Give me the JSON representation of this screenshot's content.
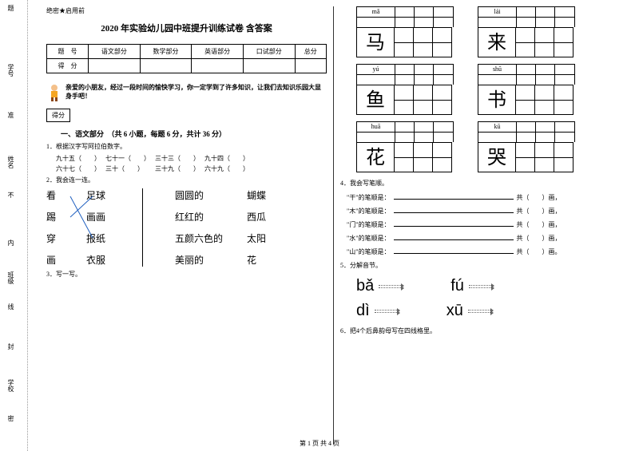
{
  "margin": {
    "labels": [
      "题",
      "学号",
      "准",
      "姓名",
      "不",
      "内",
      "班级",
      "线",
      "封",
      "学校",
      "密"
    ]
  },
  "header_tag": "绝密★启用前",
  "title": "2020 年实验幼儿园中班提升训练试卷 含答案",
  "score_table": {
    "headers": [
      "题　号",
      "语文部分",
      "数学部分",
      "英语部分",
      "口试部分",
      "总分"
    ],
    "row2_label": "得　分"
  },
  "intro": "亲爱的小朋友，经过一段时间的愉快学习，你一定学到了许多知识，让我们去知识乐园大显身手吧！",
  "score_box_label": "得分",
  "section1": {
    "title": "　　一、语文部分　（共 6 小题，每题 6 分，共计 36 分）",
    "q1": "1．根据汉字写阿拉伯数字。",
    "q1_row1": [
      "九十五（　　）",
      "七十一（　　）",
      "三十三（　　）",
      "九十四（　　）"
    ],
    "q1_row2": [
      "六十七（　　）",
      "三十（　　）",
      "三十九（　　）",
      "六十九（　　）"
    ],
    "q2": "2．我会连一连。",
    "match_left1": [
      "看",
      "踢",
      "穿",
      "画"
    ],
    "match_left2": [
      "足球",
      "画画",
      "报纸",
      "衣服"
    ],
    "match_right1": [
      "圆圆的",
      "红红的",
      "五颜六色的",
      "美丽的"
    ],
    "match_right2": [
      "蝴蝶",
      "西瓜",
      "太阳",
      "花"
    ],
    "q3": "3．写一写。"
  },
  "char_boxes": [
    {
      "pinyin": "mǎ",
      "char": "马"
    },
    {
      "pinyin": "lái",
      "char": "来"
    },
    {
      "pinyin": "yú",
      "char": "鱼"
    },
    {
      "pinyin": "shū",
      "char": "书"
    },
    {
      "pinyin": "huā",
      "char": "花"
    },
    {
      "pinyin": "kū",
      "char": "哭"
    }
  ],
  "q4": {
    "title": "4．我会写笔顺。",
    "items": [
      "\"干\"的笔顺是：",
      "\"木\"的笔顺是：",
      "\"门\"的笔顺是：",
      "\"水\"的笔顺是：",
      "\"山\"的笔顺是："
    ],
    "suffix_a": "共（　　）画。",
    "suffix_b": "共（　　）画，"
  },
  "q5": {
    "title": "5．分解音节。",
    "items": [
      "bǎ",
      "fú",
      "dì",
      "xū"
    ]
  },
  "q6": "6．把4个后鼻韵母写在四线格里。",
  "footer": "第 1 页 共 4 页"
}
